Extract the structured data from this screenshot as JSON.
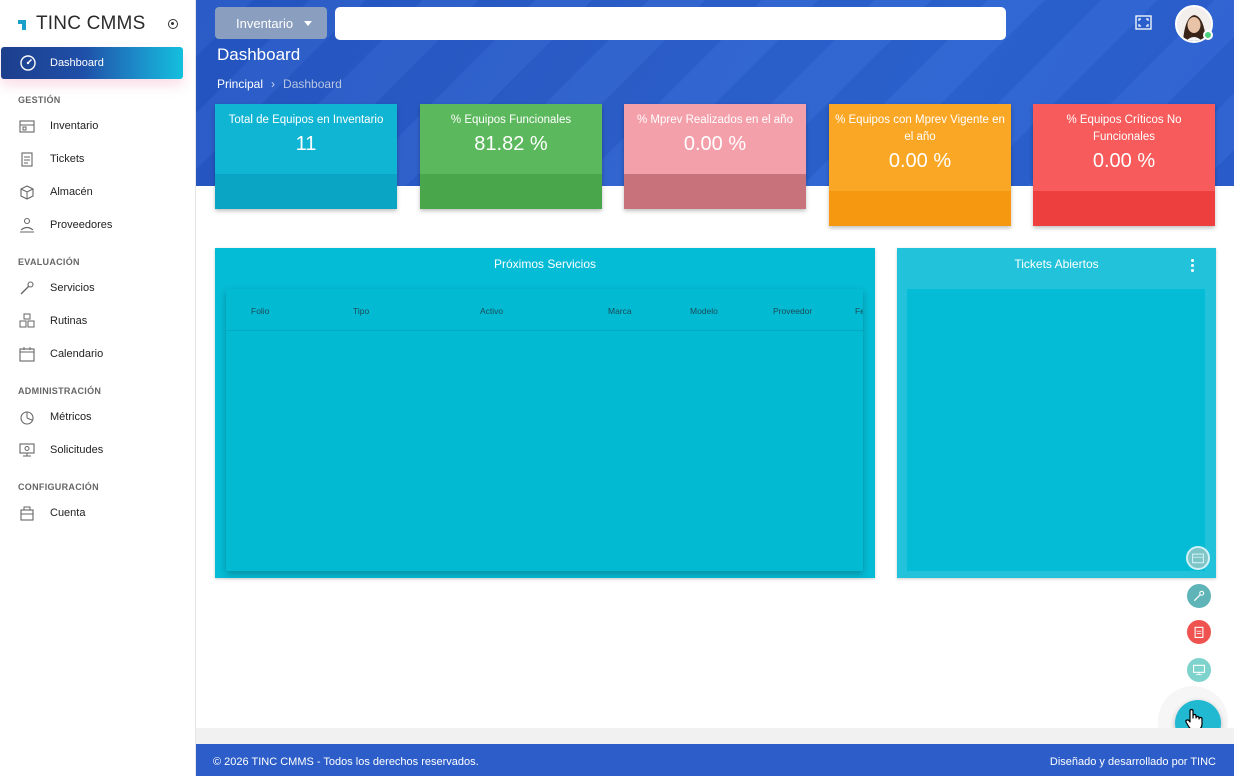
{
  "app": {
    "title": "TINC CMMS"
  },
  "sidebar": {
    "active": {
      "label": "Dashboard",
      "icon": "speedometer-icon"
    },
    "sections": [
      {
        "title": "GESTIÓN",
        "items": [
          {
            "label": "Inventario",
            "icon": "inventory-icon"
          },
          {
            "label": "Tickets",
            "icon": "clipboard-icon"
          },
          {
            "label": "Almacén",
            "icon": "box-icon"
          },
          {
            "label": "Proveedores",
            "icon": "supplier-icon"
          }
        ]
      },
      {
        "title": "EVALUACIÓN",
        "items": [
          {
            "label": "Servicios",
            "icon": "wrench-icon"
          },
          {
            "label": "Rutinas",
            "icon": "boxes-icon"
          },
          {
            "label": "Calendario",
            "icon": "calendar-icon"
          }
        ]
      },
      {
        "title": "ADMINISTRACIÓN",
        "items": [
          {
            "label": "Métricos",
            "icon": "pie-chart-icon"
          },
          {
            "label": "Solicitudes",
            "icon": "request-monitor-icon"
          }
        ]
      },
      {
        "title": "CONFIGURACIÓN",
        "items": [
          {
            "label": "Cuenta",
            "icon": "account-icon"
          }
        ]
      }
    ]
  },
  "header": {
    "dropdown_label": "Inventario",
    "search_value": "",
    "page_title": "Dashboard",
    "breadcrumb": {
      "root": "Principal",
      "separator": "›",
      "current": "Dashboard"
    }
  },
  "stats": [
    {
      "caption": "Total de Equipos en Inventario",
      "value": "11",
      "color": "#0fb5d3",
      "bottom_color": "#0aa4c4"
    },
    {
      "caption": "% Equipos Funcionales",
      "value": "81.82 %",
      "color": "#5cb85c",
      "bottom_color": "#4aa64a"
    },
    {
      "caption": "% Mprev Realizados en el año",
      "value": "0.00 %",
      "color": "#f4a0ab",
      "bottom_color": "#c8727c"
    },
    {
      "caption": "% Equipos con Mprev Vigente en el año",
      "value": "0.00 %",
      "color": "#fba726",
      "bottom_color": "#f79910"
    },
    {
      "caption": "% Equipos Críticos No Funcionales",
      "value": "0.00 %",
      "color": "#f75b5b",
      "bottom_color": "#ee3f3f"
    }
  ],
  "services_panel": {
    "title": "Próximos Servicios",
    "columns": [
      "Folio",
      "Tipo",
      "Activo",
      "Marca",
      "Modelo",
      "Proveedor",
      "Fe"
    ]
  },
  "tickets_panel": {
    "title": "Tickets Abiertos"
  },
  "fabs": [
    {
      "icon": "inventory-icon",
      "color": "#9ec7c4"
    },
    {
      "icon": "wrench-icon",
      "color": "#5fb4b8"
    },
    {
      "icon": "clipboard-icon",
      "color": "#ef5350"
    },
    {
      "icon": "request-monitor-icon",
      "color": "#7fd3cd"
    }
  ],
  "footer": {
    "left": "© 2026 TINC CMMS - Todos los derechos reservados.",
    "right": "Diseñado y desarrollado por TINC"
  }
}
